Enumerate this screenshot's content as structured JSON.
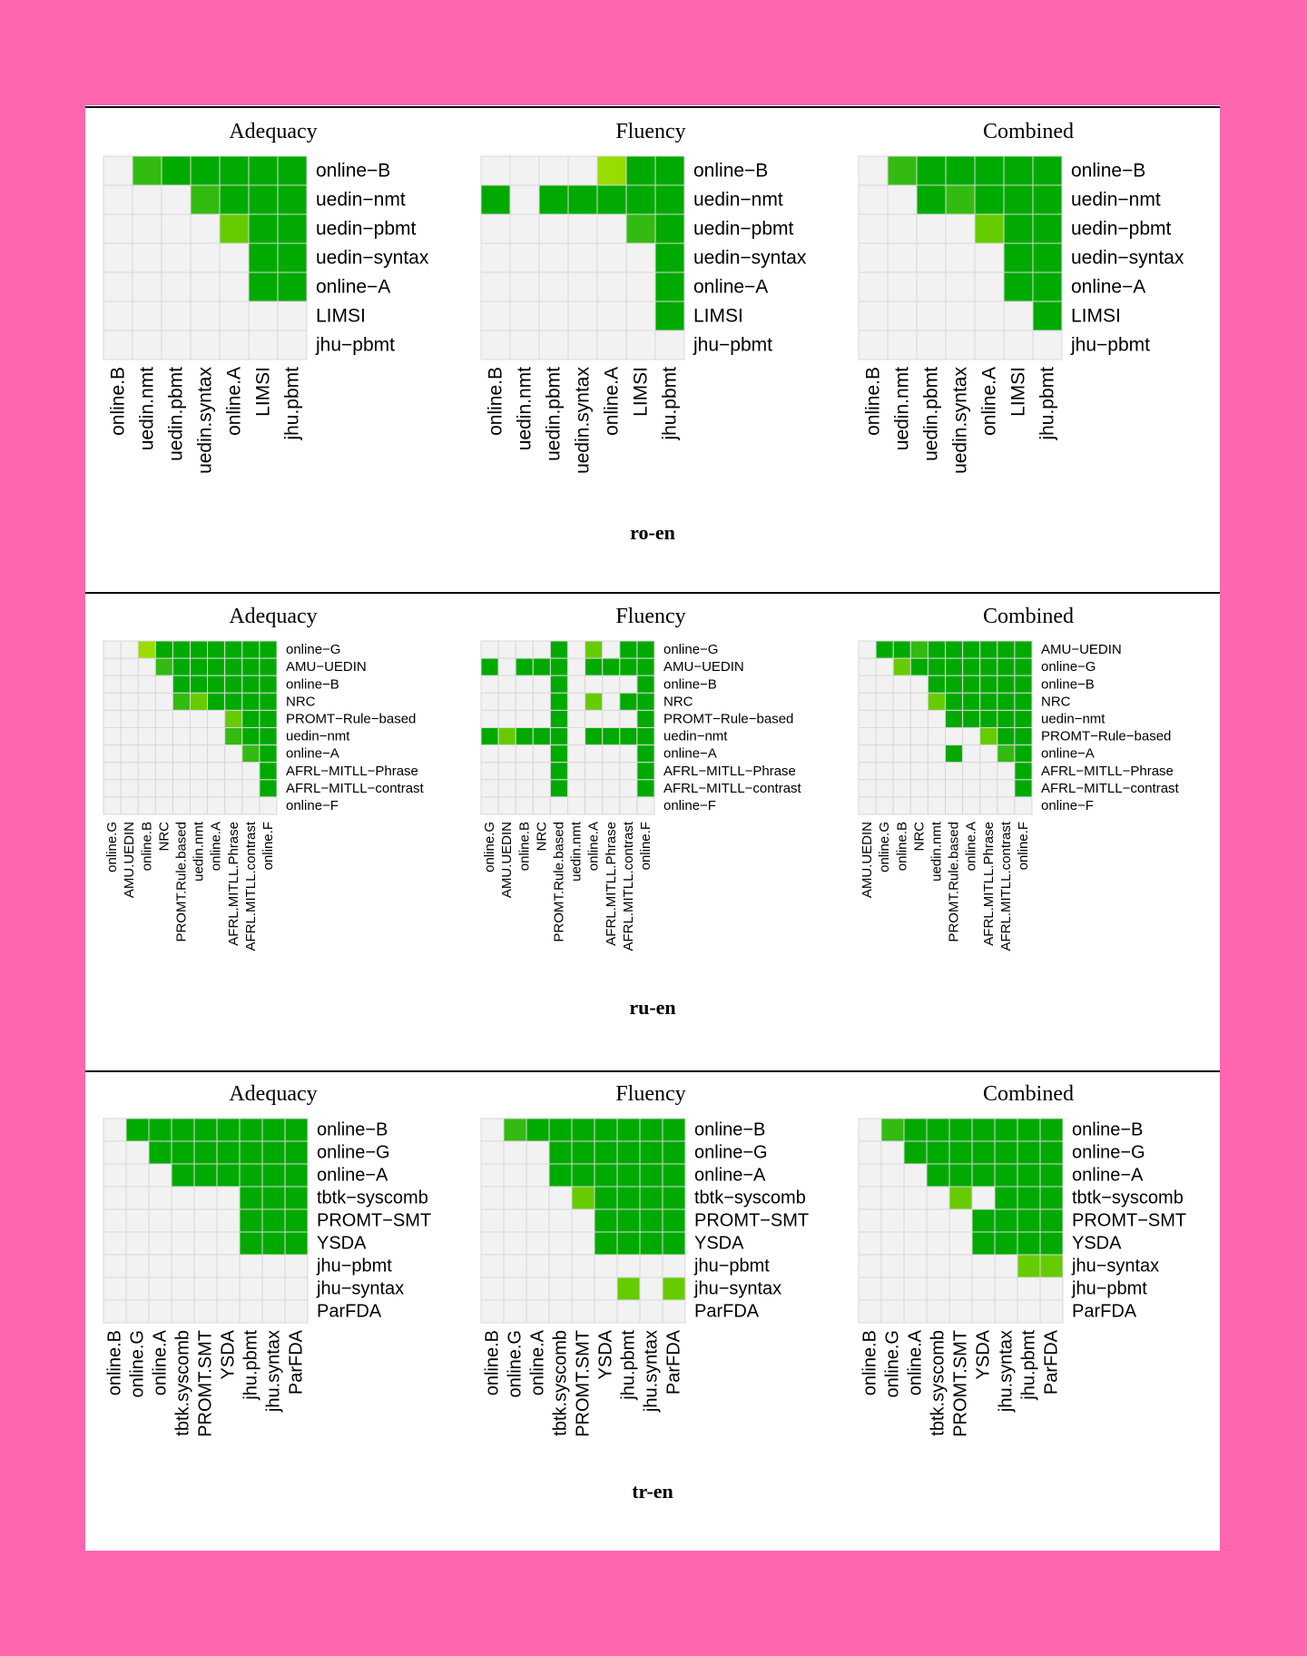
{
  "colors": {
    "none": "#f2f2f2",
    "win": "#00aa00",
    "win_mid": "#33bb11",
    "win_light": "#66cc00",
    "win_pale": "#99dd00",
    "grid": "#d8d8d8"
  },
  "chart_data": [
    {
      "type": "heatmap",
      "pair": "ro-en",
      "panels": [
        {
          "title": "Adequacy",
          "rows": [
            "online−B",
            "uedin−nmt",
            "uedin−pbmt",
            "uedin−syntax",
            "online−A",
            "LIMSI",
            "jhu−pbmt"
          ],
          "cols": [
            "online.B",
            "uedin.nmt",
            "uedin.pbmt",
            "uedin.syntax",
            "online.A",
            "LIMSI",
            "jhu.pbmt"
          ],
          "cells": [
            [
              0,
              2,
              1,
              1,
              1,
              1,
              1
            ],
            [
              0,
              0,
              0,
              2,
              1,
              1,
              1
            ],
            [
              0,
              0,
              0,
              0,
              3,
              1,
              1
            ],
            [
              0,
              0,
              0,
              0,
              0,
              1,
              1
            ],
            [
              0,
              0,
              0,
              0,
              0,
              1,
              1
            ],
            [
              0,
              0,
              0,
              0,
              0,
              0,
              0
            ],
            [
              0,
              0,
              0,
              0,
              0,
              0,
              0
            ]
          ]
        },
        {
          "title": "Fluency",
          "rows": [
            "online−B",
            "uedin−nmt",
            "uedin−pbmt",
            "uedin−syntax",
            "online−A",
            "LIMSI",
            "jhu−pbmt"
          ],
          "cols": [
            "online.B",
            "uedin.nmt",
            "uedin.pbmt",
            "uedin.syntax",
            "online.A",
            "LIMSI",
            "jhu.pbmt"
          ],
          "cells": [
            [
              0,
              0,
              0,
              0,
              4,
              1,
              1
            ],
            [
              1,
              0,
              1,
              1,
              1,
              1,
              1
            ],
            [
              0,
              0,
              0,
              0,
              0,
              2,
              1
            ],
            [
              0,
              0,
              0,
              0,
              0,
              0,
              1
            ],
            [
              0,
              0,
              0,
              0,
              0,
              0,
              1
            ],
            [
              0,
              0,
              0,
              0,
              0,
              0,
              1
            ],
            [
              0,
              0,
              0,
              0,
              0,
              0,
              0
            ]
          ]
        },
        {
          "title": "Combined",
          "rows": [
            "online−B",
            "uedin−nmt",
            "uedin−pbmt",
            "uedin−syntax",
            "online−A",
            "LIMSI",
            "jhu−pbmt"
          ],
          "cols": [
            "online.B",
            "uedin.nmt",
            "uedin.pbmt",
            "uedin.syntax",
            "online.A",
            "LIMSI",
            "jhu.pbmt"
          ],
          "cells": [
            [
              0,
              2,
              1,
              1,
              1,
              1,
              1
            ],
            [
              0,
              0,
              1,
              2,
              1,
              1,
              1
            ],
            [
              0,
              0,
              0,
              0,
              3,
              1,
              1
            ],
            [
              0,
              0,
              0,
              0,
              0,
              1,
              1
            ],
            [
              0,
              0,
              0,
              0,
              0,
              1,
              1
            ],
            [
              0,
              0,
              0,
              0,
              0,
              0,
              1
            ],
            [
              0,
              0,
              0,
              0,
              0,
              0,
              0
            ]
          ]
        }
      ]
    },
    {
      "type": "heatmap",
      "pair": "ru-en",
      "panels": [
        {
          "title": "Adequacy",
          "rows": [
            "online−G",
            "AMU−UEDIN",
            "online−B",
            "NRC",
            "PROMT−Rule−based",
            "uedin−nmt",
            "online−A",
            "AFRL−MITLL−Phrase",
            "AFRL−MITLL−contrast",
            "online−F"
          ],
          "cols": [
            "online.G",
            "AMU.UEDIN",
            "online.B",
            "NRC",
            "PROMT.Rule.based",
            "uedin.nmt",
            "online.A",
            "AFRL.MITLL.Phrase",
            "AFRL.MITLL.contrast",
            "online.F"
          ],
          "cells": [
            [
              0,
              0,
              4,
              1,
              1,
              1,
              1,
              1,
              1,
              1
            ],
            [
              0,
              0,
              0,
              2,
              1,
              1,
              1,
              1,
              1,
              1
            ],
            [
              0,
              0,
              0,
              0,
              1,
              1,
              1,
              1,
              1,
              1
            ],
            [
              0,
              0,
              0,
              0,
              2,
              3,
              1,
              1,
              1,
              1
            ],
            [
              0,
              0,
              0,
              0,
              0,
              0,
              0,
              3,
              1,
              1
            ],
            [
              0,
              0,
              0,
              0,
              0,
              0,
              0,
              2,
              1,
              1
            ],
            [
              0,
              0,
              0,
              0,
              0,
              0,
              0,
              0,
              2,
              1
            ],
            [
              0,
              0,
              0,
              0,
              0,
              0,
              0,
              0,
              0,
              1
            ],
            [
              0,
              0,
              0,
              0,
              0,
              0,
              0,
              0,
              0,
              1
            ],
            [
              0,
              0,
              0,
              0,
              0,
              0,
              0,
              0,
              0,
              0
            ]
          ]
        },
        {
          "title": "Fluency",
          "rows": [
            "online−G",
            "AMU−UEDIN",
            "online−B",
            "NRC",
            "PROMT−Rule−based",
            "uedin−nmt",
            "online−A",
            "AFRL−MITLL−Phrase",
            "AFRL−MITLL−contrast",
            "online−F"
          ],
          "cols": [
            "online.G",
            "AMU.UEDIN",
            "online.B",
            "NRC",
            "PROMT.Rule.based",
            "uedin.nmt",
            "online.A",
            "AFRL.MITLL.Phrase",
            "AFRL.MITLL.contrast",
            "online.F"
          ],
          "cells": [
            [
              0,
              0,
              0,
              0,
              1,
              0,
              3,
              0,
              1,
              1
            ],
            [
              1,
              0,
              1,
              1,
              1,
              0,
              1,
              1,
              1,
              1
            ],
            [
              0,
              0,
              0,
              0,
              1,
              0,
              0,
              0,
              0,
              1
            ],
            [
              0,
              0,
              0,
              0,
              1,
              0,
              3,
              0,
              1,
              1
            ],
            [
              0,
              0,
              0,
              0,
              1,
              0,
              0,
              0,
              0,
              1
            ],
            [
              1,
              3,
              1,
              1,
              1,
              0,
              1,
              1,
              1,
              1
            ],
            [
              0,
              0,
              0,
              0,
              1,
              0,
              0,
              0,
              0,
              1
            ],
            [
              0,
              0,
              0,
              0,
              1,
              0,
              0,
              0,
              0,
              1
            ],
            [
              0,
              0,
              0,
              0,
              1,
              0,
              0,
              0,
              0,
              1
            ],
            [
              0,
              0,
              0,
              0,
              0,
              0,
              0,
              0,
              0,
              0
            ]
          ]
        },
        {
          "title": "Combined",
          "rows": [
            "AMU−UEDIN",
            "online−G",
            "online−B",
            "NRC",
            "uedin−nmt",
            "PROMT−Rule−based",
            "online−A",
            "AFRL−MITLL−Phrase",
            "AFRL−MITLL−contrast",
            "online−F"
          ],
          "cols": [
            "AMU.UEDIN",
            "online.G",
            "online.B",
            "NRC",
            "uedin.nmt",
            "PROMT.Rule.based",
            "online.A",
            "AFRL.MITLL.Phrase",
            "AFRL.MITLL.contrast",
            "online.F"
          ],
          "cells": [
            [
              0,
              1,
              1,
              2,
              1,
              1,
              1,
              1,
              1,
              1
            ],
            [
              0,
              0,
              3,
              1,
              1,
              1,
              1,
              1,
              1,
              1
            ],
            [
              0,
              0,
              0,
              0,
              1,
              1,
              1,
              1,
              1,
              1
            ],
            [
              0,
              0,
              0,
              0,
              3,
              1,
              1,
              1,
              1,
              1
            ],
            [
              0,
              0,
              0,
              0,
              0,
              1,
              1,
              1,
              1,
              1
            ],
            [
              0,
              0,
              0,
              0,
              0,
              0,
              0,
              3,
              1,
              1
            ],
            [
              0,
              0,
              0,
              0,
              0,
              1,
              0,
              0,
              2,
              1
            ],
            [
              0,
              0,
              0,
              0,
              0,
              0,
              0,
              0,
              0,
              1
            ],
            [
              0,
              0,
              0,
              0,
              0,
              0,
              0,
              0,
              0,
              1
            ],
            [
              0,
              0,
              0,
              0,
              0,
              0,
              0,
              0,
              0,
              0
            ]
          ]
        }
      ]
    },
    {
      "type": "heatmap",
      "pair": "tr-en",
      "panels": [
        {
          "title": "Adequacy",
          "rows": [
            "online−B",
            "online−G",
            "online−A",
            "tbtk−syscomb",
            "PROMT−SMT",
            "YSDA",
            "jhu−pbmt",
            "jhu−syntax",
            "ParFDA"
          ],
          "cols": [
            "online.B",
            "online.G",
            "online.A",
            "tbtk.syscomb",
            "PROMT.SMT",
            "YSDA",
            "jhu.pbmt",
            "jhu.syntax",
            "ParFDA"
          ],
          "cells": [
            [
              0,
              1,
              1,
              1,
              1,
              1,
              1,
              1,
              1
            ],
            [
              0,
              0,
              1,
              1,
              1,
              1,
              1,
              1,
              1
            ],
            [
              0,
              0,
              0,
              1,
              1,
              1,
              1,
              1,
              1
            ],
            [
              0,
              0,
              0,
              0,
              0,
              0,
              1,
              1,
              1
            ],
            [
              0,
              0,
              0,
              0,
              0,
              0,
              1,
              1,
              1
            ],
            [
              0,
              0,
              0,
              0,
              0,
              0,
              1,
              1,
              1
            ],
            [
              0,
              0,
              0,
              0,
              0,
              0,
              0,
              0,
              0
            ],
            [
              0,
              0,
              0,
              0,
              0,
              0,
              0,
              0,
              0
            ],
            [
              0,
              0,
              0,
              0,
              0,
              0,
              0,
              0,
              0
            ]
          ]
        },
        {
          "title": "Fluency",
          "rows": [
            "online−B",
            "online−G",
            "online−A",
            "tbtk−syscomb",
            "PROMT−SMT",
            "YSDA",
            "jhu−pbmt",
            "jhu−syntax",
            "ParFDA"
          ],
          "cols": [
            "online.B",
            "online.G",
            "online.A",
            "tbtk.syscomb",
            "PROMT.SMT",
            "YSDA",
            "jhu.pbmt",
            "jhu.syntax",
            "ParFDA"
          ],
          "cells": [
            [
              0,
              2,
              1,
              1,
              1,
              1,
              1,
              1,
              1
            ],
            [
              0,
              0,
              0,
              1,
              1,
              1,
              1,
              1,
              1
            ],
            [
              0,
              0,
              0,
              1,
              1,
              1,
              1,
              1,
              1
            ],
            [
              0,
              0,
              0,
              0,
              3,
              1,
              1,
              1,
              1
            ],
            [
              0,
              0,
              0,
              0,
              0,
              1,
              1,
              1,
              1
            ],
            [
              0,
              0,
              0,
              0,
              0,
              1,
              1,
              1,
              1
            ],
            [
              0,
              0,
              0,
              0,
              0,
              0,
              0,
              0,
              0
            ],
            [
              0,
              0,
              0,
              0,
              0,
              0,
              3,
              0,
              3
            ],
            [
              0,
              0,
              0,
              0,
              0,
              0,
              0,
              0,
              0
            ]
          ]
        },
        {
          "title": "Combined",
          "rows": [
            "online−B",
            "online−G",
            "online−A",
            "tbtk−syscomb",
            "PROMT−SMT",
            "YSDA",
            "jhu−syntax",
            "jhu−pbmt",
            "ParFDA"
          ],
          "cols": [
            "online.B",
            "online.G",
            "online.A",
            "tbtk.syscomb",
            "PROMT.SMT",
            "YSDA",
            "jhu.syntax",
            "jhu.pbmt",
            "ParFDA"
          ],
          "cells": [
            [
              0,
              2,
              1,
              1,
              1,
              1,
              1,
              1,
              1
            ],
            [
              0,
              0,
              1,
              1,
              1,
              1,
              1,
              1,
              1
            ],
            [
              0,
              0,
              0,
              1,
              1,
              1,
              1,
              1,
              1
            ],
            [
              0,
              0,
              0,
              0,
              3,
              0,
              1,
              1,
              1
            ],
            [
              0,
              0,
              0,
              0,
              0,
              1,
              1,
              1,
              1
            ],
            [
              0,
              0,
              0,
              0,
              0,
              1,
              1,
              1,
              1
            ],
            [
              0,
              0,
              0,
              0,
              0,
              0,
              0,
              3,
              3
            ],
            [
              0,
              0,
              0,
              0,
              0,
              0,
              0,
              0,
              0
            ],
            [
              0,
              0,
              0,
              0,
              0,
              0,
              0,
              0,
              0
            ]
          ]
        }
      ]
    }
  ]
}
